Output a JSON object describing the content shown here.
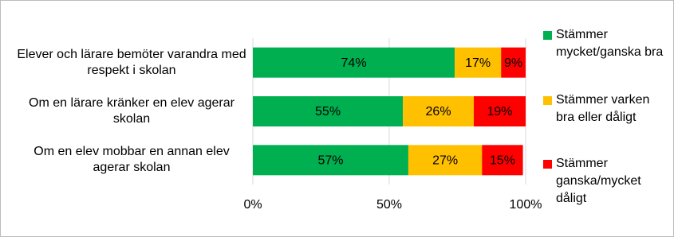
{
  "chart_data": {
    "type": "stacked-barh",
    "categories": [
      "Elever och lärare bemöter varandra med respekt i skolan",
      "Om en lärare kränker en elev agerar skolan",
      "Om en elev mobbar en annan elev agerar skolan"
    ],
    "series": [
      {
        "name": "Stämmer mycket/ganska bra",
        "color": "#00b050",
        "values": [
          74,
          55,
          57
        ],
        "value_labels": [
          "74%",
          "55%",
          "57%"
        ]
      },
      {
        "name": "Stämmer varken bra eller dåligt",
        "color": "#ffc000",
        "values": [
          17,
          26,
          27
        ],
        "value_labels": [
          "17%",
          "26%",
          "27%"
        ]
      },
      {
        "name": "Stämmer ganska/mycket dåligt",
        "color": "#ff0000",
        "values": [
          9,
          19,
          15
        ],
        "value_labels": [
          "9%",
          "19%",
          "15%"
        ]
      }
    ],
    "xlim": [
      0,
      100
    ],
    "xticks": [
      {
        "value": 0,
        "label": "0%"
      },
      {
        "value": 50,
        "label": "50%"
      },
      {
        "value": 100,
        "label": "100%"
      }
    ],
    "grid": true
  }
}
